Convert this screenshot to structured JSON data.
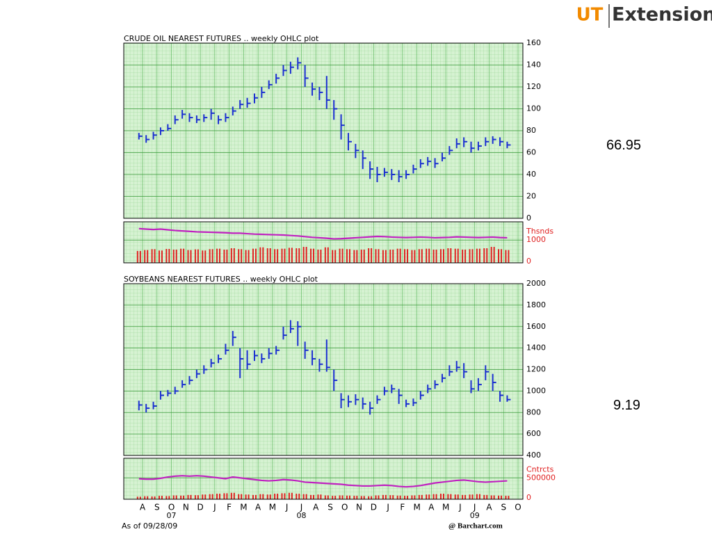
{
  "header": {
    "logo_mark": "UT",
    "logo_text": "Extension"
  },
  "footer": {
    "as_of": "As of 09/28/09",
    "source": "@ Barchart.com"
  },
  "chart_data": [
    {
      "type": "ohlc",
      "title": "CRUDE OIL NEAREST FUTURES .. weekly OHLC plot",
      "last_price": 66.95,
      "color": "#1a2fd0",
      "high": [
        78,
        76,
        79,
        83,
        86,
        94,
        99,
        96,
        94,
        95,
        100,
        94,
        96,
        102,
        108,
        110,
        114,
        120,
        126,
        132,
        140,
        143,
        147,
        140,
        124,
        120,
        130,
        108,
        95,
        78,
        68,
        62,
        52,
        47,
        46,
        45,
        44,
        44,
        49,
        54,
        56,
        55,
        60,
        66,
        73,
        74,
        70,
        70,
        74,
        75,
        74,
        70
      ],
      "low": [
        72,
        69,
        72,
        76,
        80,
        86,
        91,
        88,
        87,
        88,
        90,
        86,
        88,
        94,
        100,
        101,
        105,
        110,
        118,
        123,
        130,
        132,
        136,
        120,
        112,
        108,
        100,
        90,
        72,
        62,
        55,
        45,
        36,
        33,
        38,
        35,
        33,
        36,
        41,
        46,
        48,
        46,
        52,
        58,
        64,
        65,
        60,
        62,
        66,
        68,
        66,
        64
      ],
      "close": [
        75,
        72,
        76,
        80,
        82,
        90,
        95,
        92,
        90,
        92,
        96,
        90,
        92,
        98,
        104,
        105,
        110,
        115,
        122,
        128,
        135,
        138,
        142,
        128,
        118,
        115,
        108,
        100,
        85,
        70,
        62,
        55,
        45,
        40,
        42,
        40,
        38,
        40,
        45,
        50,
        52,
        50,
        55,
        62,
        68,
        70,
        64,
        66,
        70,
        72,
        70,
        67
      ],
      "ylim": [
        0,
        160
      ],
      "yticks": [
        0,
        20,
        40,
        60,
        80,
        100,
        120,
        140,
        160
      ],
      "volume": {
        "unit_label": "Thsnds",
        "ylim": [
          0,
          1800
        ],
        "yticks": [
          0,
          1000
        ],
        "bar_color": "#e02020",
        "line_color": "#c020c0",
        "open_interest": [
          1500,
          1480,
          1460,
          1480,
          1450,
          1420,
          1400,
          1380,
          1360,
          1350,
          1340,
          1330,
          1320,
          1300,
          1300,
          1280,
          1260,
          1250,
          1240,
          1230,
          1220,
          1200,
          1180,
          1150,
          1120,
          1100,
          1080,
          1050,
          1060,
          1080,
          1100,
          1120,
          1140,
          1160,
          1150,
          1130,
          1120,
          1110,
          1120,
          1130,
          1120,
          1100,
          1110,
          1120,
          1140,
          1130,
          1120,
          1110,
          1120,
          1130,
          1110,
          1100
        ],
        "values": [
          520,
          560,
          600,
          540,
          610,
          580,
          620,
          560,
          590,
          540,
          600,
          620,
          580,
          640,
          600,
          560,
          620,
          680,
          640,
          600,
          620,
          660,
          640,
          700,
          620,
          580,
          680,
          560,
          620,
          600,
          560,
          580,
          640,
          600,
          560,
          580,
          620,
          600,
          560,
          600,
          620,
          580,
          600,
          640,
          620,
          580,
          600,
          620,
          640,
          700,
          600,
          560
        ]
      }
    },
    {
      "type": "ohlc",
      "title": "SOYBEANS NEAREST FUTURES .. weekly OHLC plot",
      "last_price": 9.19,
      "color": "#1a2fd0",
      "high": [
        910,
        880,
        900,
        1000,
        1010,
        1040,
        1100,
        1140,
        1200,
        1240,
        1300,
        1340,
        1440,
        1560,
        1400,
        1380,
        1380,
        1350,
        1400,
        1420,
        1600,
        1660,
        1650,
        1460,
        1380,
        1300,
        1480,
        1200,
        980,
        960,
        970,
        940,
        900,
        960,
        1040,
        1060,
        1020,
        920,
        930,
        1000,
        1060,
        1100,
        1160,
        1240,
        1280,
        1260,
        1100,
        1120,
        1240,
        1160,
        1000,
        960
      ],
      "low": [
        820,
        800,
        830,
        920,
        950,
        970,
        1030,
        1060,
        1120,
        1160,
        1220,
        1260,
        1340,
        1420,
        1120,
        1200,
        1280,
        1260,
        1300,
        1340,
        1480,
        1540,
        1420,
        1300,
        1240,
        1180,
        1180,
        1000,
        840,
        850,
        870,
        830,
        780,
        880,
        960,
        980,
        880,
        850,
        860,
        920,
        980,
        1020,
        1080,
        1140,
        1180,
        1120,
        980,
        1000,
        1100,
        1000,
        900,
        900
      ],
      "close": [
        870,
        840,
        860,
        960,
        980,
        1000,
        1060,
        1100,
        1160,
        1200,
        1260,
        1300,
        1380,
        1500,
        1300,
        1250,
        1330,
        1300,
        1350,
        1380,
        1520,
        1580,
        1600,
        1380,
        1300,
        1250,
        1220,
        1100,
        920,
        900,
        920,
        880,
        840,
        920,
        1000,
        1020,
        960,
        880,
        890,
        960,
        1020,
        1060,
        1120,
        1180,
        1220,
        1180,
        1020,
        1060,
        1180,
        1080,
        960,
        920
      ],
      "ylim": [
        400,
        2000
      ],
      "yticks": [
        400,
        600,
        800,
        1000,
        1200,
        1400,
        1600,
        1800,
        2000
      ],
      "volume": {
        "unit_label": "Cntrcts",
        "ylim": [
          0,
          960000
        ],
        "yticks": [
          0,
          500000
        ],
        "bar_color": "#e02020",
        "line_color": "#c020c0",
        "open_interest": [
          480000,
          470000,
          470000,
          490000,
          520000,
          540000,
          550000,
          540000,
          550000,
          540000,
          520000,
          500000,
          480000,
          520000,
          500000,
          480000,
          460000,
          440000,
          430000,
          440000,
          460000,
          450000,
          430000,
          400000,
          390000,
          380000,
          370000,
          360000,
          350000,
          330000,
          320000,
          310000,
          310000,
          320000,
          330000,
          320000,
          300000,
          290000,
          300000,
          320000,
          350000,
          380000,
          400000,
          420000,
          440000,
          450000,
          430000,
          410000,
          400000,
          410000,
          420000,
          430000
        ],
        "values": [
          60000,
          70000,
          65000,
          80000,
          75000,
          90000,
          85000,
          100000,
          95000,
          110000,
          120000,
          130000,
          140000,
          150000,
          120000,
          110000,
          100000,
          120000,
          110000,
          130000,
          140000,
          150000,
          130000,
          120000,
          100000,
          110000,
          90000,
          80000,
          90000,
          85000,
          80000,
          75000,
          70000,
          90000,
          100000,
          95000,
          85000,
          80000,
          90000,
          100000,
          110000,
          120000,
          130000,
          120000,
          110000,
          100000,
          110000,
          120000,
          100000,
          90000,
          85000,
          80000
        ]
      },
      "x_labels": [
        "A",
        "S",
        "O",
        "N",
        "D",
        "J",
        "F",
        "M",
        "A",
        "M",
        "J",
        "J",
        "A",
        "S",
        "O",
        "N",
        "D",
        "J",
        "F",
        "M",
        "A",
        "M",
        "J",
        "J",
        "A",
        "S",
        "O"
      ],
      "year_labels": [
        "07",
        "08",
        "09"
      ]
    }
  ]
}
